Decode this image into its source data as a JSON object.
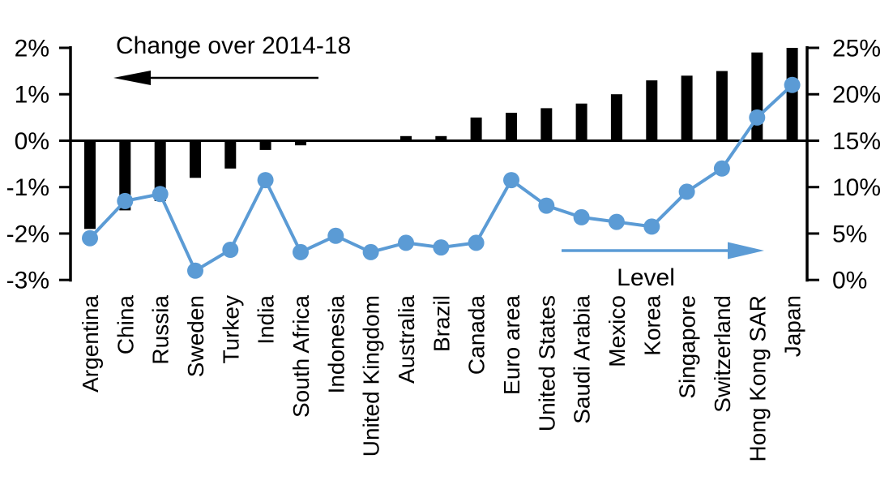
{
  "chart_data": {
    "type": "combo",
    "subtype": "bar+line-dual-axis",
    "categories": [
      "Argentina",
      "China",
      "Russia",
      "Sweden",
      "Turkey",
      "India",
      "South Africa",
      "Indonesia",
      "United Kingdom",
      "Australia",
      "Brazil",
      "Canada",
      "Euro area",
      "United States",
      "Saudi Arabia",
      "Mexico",
      "Korea",
      "Singapore",
      "Switzerland",
      "Hong Kong SAR",
      "Japan"
    ],
    "series": [
      {
        "name": "Change over 2014-18",
        "type": "bar",
        "axis": "left",
        "color": "#000000",
        "unit": "%",
        "values": [
          -1.9,
          -1.5,
          -1.3,
          -0.8,
          -0.6,
          -0.2,
          -0.1,
          0,
          0,
          0.1,
          0.1,
          0.5,
          0.6,
          0.7,
          0.8,
          1.0,
          1.3,
          1.4,
          1.5,
          1.9,
          2.0
        ]
      },
      {
        "name": "Level",
        "type": "line",
        "axis": "right",
        "color": "#5b9bd5",
        "unit": "%",
        "values": [
          4.5,
          8.5,
          9.25,
          1.0,
          3.25,
          10.75,
          3.0,
          4.75,
          3.0,
          4.0,
          3.5,
          4.0,
          10.75,
          8.0,
          6.75,
          6.25,
          5.75,
          9.5,
          12.0,
          17.5,
          21.0
        ]
      }
    ],
    "left_axis": {
      "min": -3,
      "max": 2,
      "step": 1,
      "tick_labels": [
        "2%",
        "1%",
        "0%",
        "-1%",
        "-2%",
        "-3%"
      ]
    },
    "right_axis": {
      "min": 0,
      "max": 25,
      "step": 5,
      "tick_labels": [
        "25%",
        "20%",
        "15%",
        "10%",
        "5%",
        "0%"
      ]
    },
    "annotations": [
      {
        "text": "Change over 2014-18",
        "arrow": "left",
        "color": "#000000"
      },
      {
        "text": "Level",
        "arrow": "right",
        "arrow_color": "#5b9bd5",
        "text_color": "#000000"
      }
    ],
    "grid": false,
    "legend": "none"
  }
}
